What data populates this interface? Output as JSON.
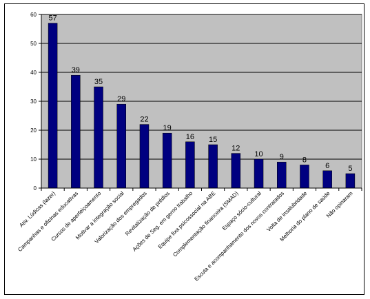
{
  "chart_data": {
    "type": "bar",
    "categories": [
      "Ativ. Lúdicas (lazer)",
      "Campanhas e oficinas educativas",
      "Cursos de aperfeiçoamento",
      "Motivar a integração social",
      "Valorização dos empregados",
      "Revitalização de prédios",
      "Ações de Seg. em gerno trabalho",
      "Equipe fixa psicossocial na ABE",
      "Complementação financeira (SMAD)",
      "Espaço sócio-cultural",
      "Escuta e acompanhamento dos novos contratados",
      "Volta de insalubridade",
      "Melhoria do plano de saúde",
      "Não opinaram"
    ],
    "values": [
      57,
      39,
      35,
      29,
      22,
      19,
      16,
      15,
      12,
      10,
      9,
      8,
      6,
      5
    ],
    "ylim": [
      0,
      60
    ],
    "yticks": [
      0,
      10,
      20,
      30,
      40,
      50,
      60
    ],
    "grid": true,
    "legend": "none",
    "colors": {
      "bar": "#000080",
      "plot_background": "#c0c0c0",
      "gridline": "#000000"
    }
  }
}
